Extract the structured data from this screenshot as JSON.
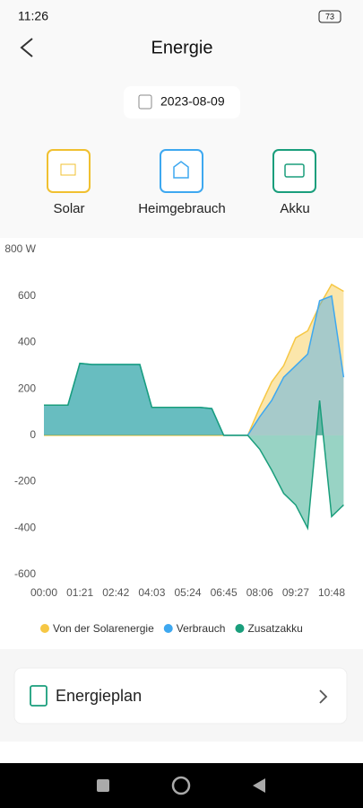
{
  "status_bar": {
    "time": "11:26",
    "battery": "73"
  },
  "header": {
    "title": "Energie"
  },
  "date": "2023-08-09",
  "tabs": [
    "Solar",
    "Heimgebrauch",
    "Akku"
  ],
  "chart_data": {
    "type": "area",
    "x": [
      "00:00",
      "00:27",
      "00:54",
      "01:21",
      "01:48",
      "02:15",
      "02:42",
      "03:09",
      "03:36",
      "04:03",
      "04:30",
      "04:57",
      "05:24",
      "05:51",
      "06:18",
      "06:45",
      "07:12",
      "07:39",
      "08:06",
      "08:33",
      "09:00",
      "09:27",
      "09:54",
      "10:21",
      "10:48",
      "11:15"
    ],
    "xticks": [
      "00:00",
      "01:21",
      "02:42",
      "04:03",
      "05:24",
      "06:45",
      "08:06",
      "09:27",
      "10:48"
    ],
    "ylim": [
      -600,
      800
    ],
    "yticks": [
      -600,
      -400,
      -200,
      0,
      200,
      400,
      600,
      {
        "value": 800,
        "label": "800 W"
      }
    ],
    "series": [
      {
        "name": "Von der Solarenergie",
        "color": "#f6c744",
        "values": [
          0,
          0,
          0,
          0,
          0,
          0,
          0,
          0,
          0,
          0,
          0,
          0,
          0,
          0,
          0,
          0,
          0,
          0,
          120,
          230,
          300,
          420,
          450,
          560,
          650,
          620
        ]
      },
      {
        "name": "Verbrauch",
        "color": "#3ea8f0",
        "values": [
          130,
          130,
          130,
          310,
          305,
          305,
          305,
          305,
          305,
          120,
          120,
          120,
          120,
          120,
          115,
          0,
          0,
          0,
          80,
          150,
          250,
          300,
          350,
          580,
          600,
          250
        ]
      },
      {
        "name": "Zusatzakku",
        "color": "#1a9e7c",
        "values": [
          130,
          130,
          130,
          310,
          305,
          305,
          305,
          305,
          305,
          120,
          120,
          120,
          120,
          120,
          115,
          0,
          0,
          0,
          -60,
          -150,
          -250,
          -300,
          -400,
          150,
          -350,
          -300
        ]
      }
    ]
  },
  "plan": {
    "title": "Energieplan"
  }
}
